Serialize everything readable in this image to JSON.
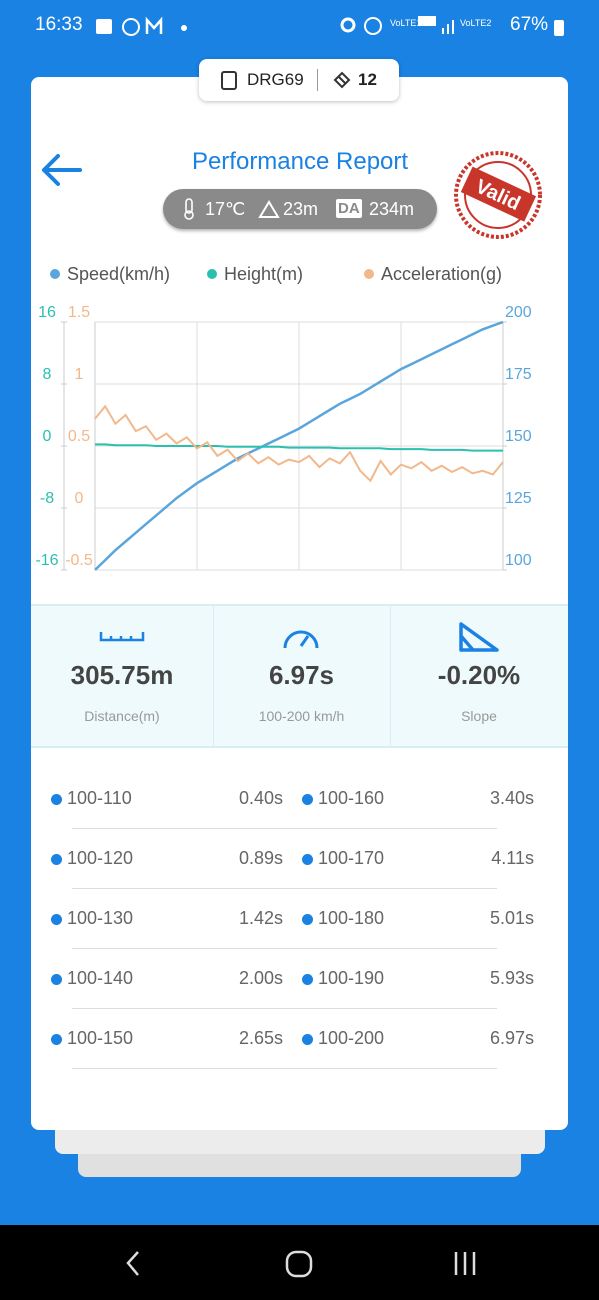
{
  "status_bar": {
    "time": "16:33",
    "battery": "67%"
  },
  "badge": {
    "device": "DRG69",
    "satellites": "12"
  },
  "header": {
    "title": "Performance Report",
    "stamp": "Valid"
  },
  "conditions": {
    "temperature": "17℃",
    "altitude": "23m",
    "da_label": "DA",
    "density_altitude": "234m"
  },
  "chart_data": {
    "type": "line",
    "series": [
      {
        "name": "Speed(km/h)",
        "color": "#5aa6dc",
        "axis": "y2",
        "values": [
          100,
          104,
          108,
          111.5,
          115,
          118.5,
          122,
          125.5,
          129,
          132,
          135,
          137.5,
          140,
          142.5,
          145,
          147,
          149,
          151,
          153,
          155,
          157,
          159.5,
          162,
          164.5,
          167,
          169,
          171,
          173.5,
          176,
          178.5,
          181,
          183,
          185,
          187,
          189,
          191,
          193,
          195,
          197,
          198.5,
          200
        ]
      },
      {
        "name": "Height(m)",
        "color": "#2bbfb0",
        "values": [
          0.2,
          0.2,
          0.1,
          0.1,
          0.1,
          0.1,
          0,
          0,
          0,
          0,
          0,
          0,
          0,
          -0.1,
          -0.1,
          -0.1,
          -0.1,
          -0.1,
          -0.1,
          -0.2,
          -0.2,
          -0.2,
          -0.2,
          -0.2,
          -0.3,
          -0.3,
          -0.3,
          -0.3,
          -0.3,
          -0.4,
          -0.4,
          -0.4,
          -0.4,
          -0.5,
          -0.5,
          -0.5,
          -0.5,
          -0.6,
          -0.6,
          -0.6,
          -0.6
        ]
      },
      {
        "name": "Acceleration(g)",
        "color": "#f2b88a",
        "axis": "y3",
        "values": [
          0.72,
          0.82,
          0.68,
          0.75,
          0.62,
          0.66,
          0.55,
          0.6,
          0.52,
          0.57,
          0.48,
          0.53,
          0.42,
          0.47,
          0.38,
          0.44,
          0.36,
          0.41,
          0.35,
          0.39,
          0.37,
          0.42,
          0.33,
          0.4,
          0.36,
          0.45,
          0.3,
          0.22,
          0.38,
          0.27,
          0.35,
          0.32,
          0.37,
          0.3,
          0.34,
          0.29,
          0.33,
          0.28,
          0.3,
          0.27,
          0.37
        ]
      }
    ],
    "ylim": [
      -16,
      16
    ],
    "yticks": [
      16,
      8,
      0,
      -8,
      -16
    ],
    "y3lim": [
      -0.5,
      1.5
    ],
    "y3ticks": [
      1.5,
      1,
      0.5,
      0,
      -0.5
    ],
    "y2lim": [
      100,
      200
    ],
    "y2ticks": [
      200,
      175,
      150,
      125,
      100
    ],
    "grid": true,
    "legend": "top"
  },
  "stats": [
    {
      "value": "305.75m",
      "label": "Distance(m)"
    },
    {
      "value": "6.97s",
      "label": "100-200 km/h"
    },
    {
      "value": "-0.20%",
      "label": "Slope"
    }
  ],
  "splits": [
    {
      "range": "100-110",
      "time": "0.40s"
    },
    {
      "range": "100-120",
      "time": "0.89s"
    },
    {
      "range": "100-130",
      "time": "1.42s"
    },
    {
      "range": "100-140",
      "time": "2.00s"
    },
    {
      "range": "100-150",
      "time": "2.65s"
    },
    {
      "range": "100-160",
      "time": "3.40s"
    },
    {
      "range": "100-170",
      "time": "4.11s"
    },
    {
      "range": "100-180",
      "time": "5.01s"
    },
    {
      "range": "100-190",
      "time": "5.93s"
    },
    {
      "range": "100-200",
      "time": "6.97s"
    }
  ]
}
